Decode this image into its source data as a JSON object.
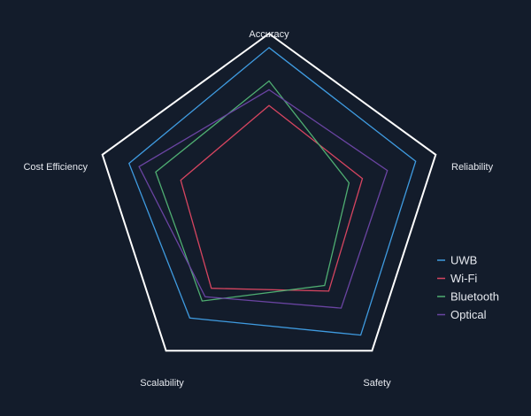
{
  "chart_data": {
    "type": "radar",
    "axes": [
      "Accuracy",
      "Reliability",
      "Safety",
      "Scalability",
      "Cost Efficiency"
    ],
    "range": [
      0,
      10
    ],
    "grid": false,
    "legend_position": "right",
    "frame_color": "#ffffff",
    "series": [
      {
        "name": "UWB",
        "color": "#3f9be0",
        "values": [
          9.2,
          8.8,
          8.9,
          7.7,
          8.4
        ]
      },
      {
        "name": "Wi-Fi",
        "color": "#d64560",
        "values": [
          5.9,
          5.6,
          5.8,
          5.6,
          5.3
        ]
      },
      {
        "name": "Bluetooth",
        "color": "#4fae72",
        "values": [
          7.3,
          4.8,
          5.4,
          6.5,
          6.8
        ]
      },
      {
        "name": "Optical",
        "color": "#6a44a2",
        "values": [
          6.8,
          7.1,
          7.0,
          6.2,
          7.8
        ]
      }
    ]
  }
}
